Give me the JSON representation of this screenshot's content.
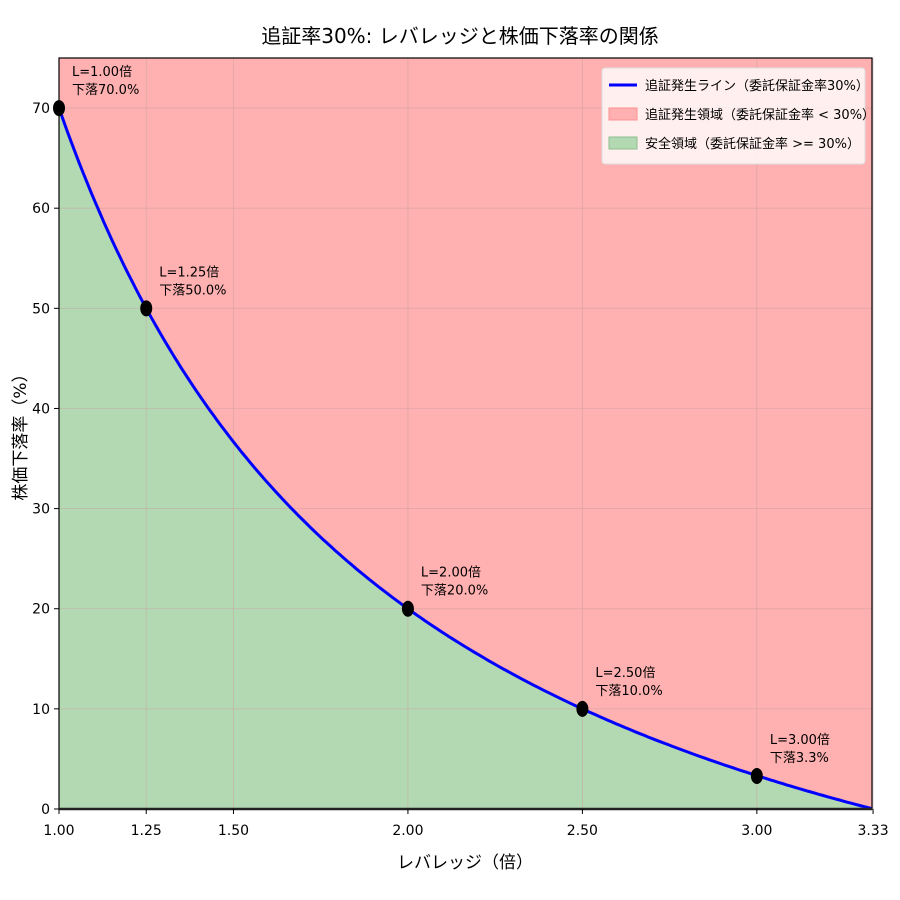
{
  "chart_data": {
    "type": "area",
    "title": "追証率30%: レバレッジと株価下落率の関係",
    "xlabel": "レバレッジ（倍）",
    "ylabel": "株価下落率（%）",
    "xlim": [
      1.0,
      3.33
    ],
    "ylim": [
      0,
      75
    ],
    "x_ticks": [
      "1.00",
      "1.25",
      "1.50",
      "2.00",
      "2.50",
      "3.00",
      "3.33"
    ],
    "x_tick_values": [
      1.0,
      1.25,
      1.5,
      2.0,
      2.5,
      3.0,
      3.333
    ],
    "y_ticks": [
      "0",
      "10",
      "20",
      "30",
      "40",
      "50",
      "60",
      "70"
    ],
    "y_tick_values": [
      0,
      10,
      20,
      30,
      40,
      50,
      60,
      70
    ],
    "grid": true,
    "legend_position": "upper right",
    "series": [
      {
        "name": "追証発生ライン（委託保証金率30%）",
        "type": "line",
        "color": "#0000ff",
        "formula": "100*(1/L - 0.3)"
      },
      {
        "name": "追証発生領域（委託保証金率 < 30%）",
        "type": "area",
        "color": "#ffb0b0"
      },
      {
        "name": "安全領域（委託保証金率 >= 30%）",
        "type": "area",
        "color": "#b3d9b3"
      }
    ],
    "points": [
      {
        "x": 1.0,
        "y": 70.0,
        "label1": "L=1.00倍",
        "label2": "下落70.0%"
      },
      {
        "x": 1.25,
        "y": 50.0,
        "label1": "L=1.25倍",
        "label2": "下落50.0%"
      },
      {
        "x": 2.0,
        "y": 20.0,
        "label1": "L=2.00倍",
        "label2": "下落20.0%"
      },
      {
        "x": 2.5,
        "y": 10.0,
        "label1": "L=2.50倍",
        "label2": "下落10.0%"
      },
      {
        "x": 3.0,
        "y": 3.3,
        "label1": "L=3.00倍",
        "label2": "下落3.3%"
      }
    ]
  },
  "colors": {
    "line": "#0000ff",
    "danger_fill": "#ffb0b0",
    "safe_fill": "#b3d9b3",
    "marker": "#000000"
  }
}
